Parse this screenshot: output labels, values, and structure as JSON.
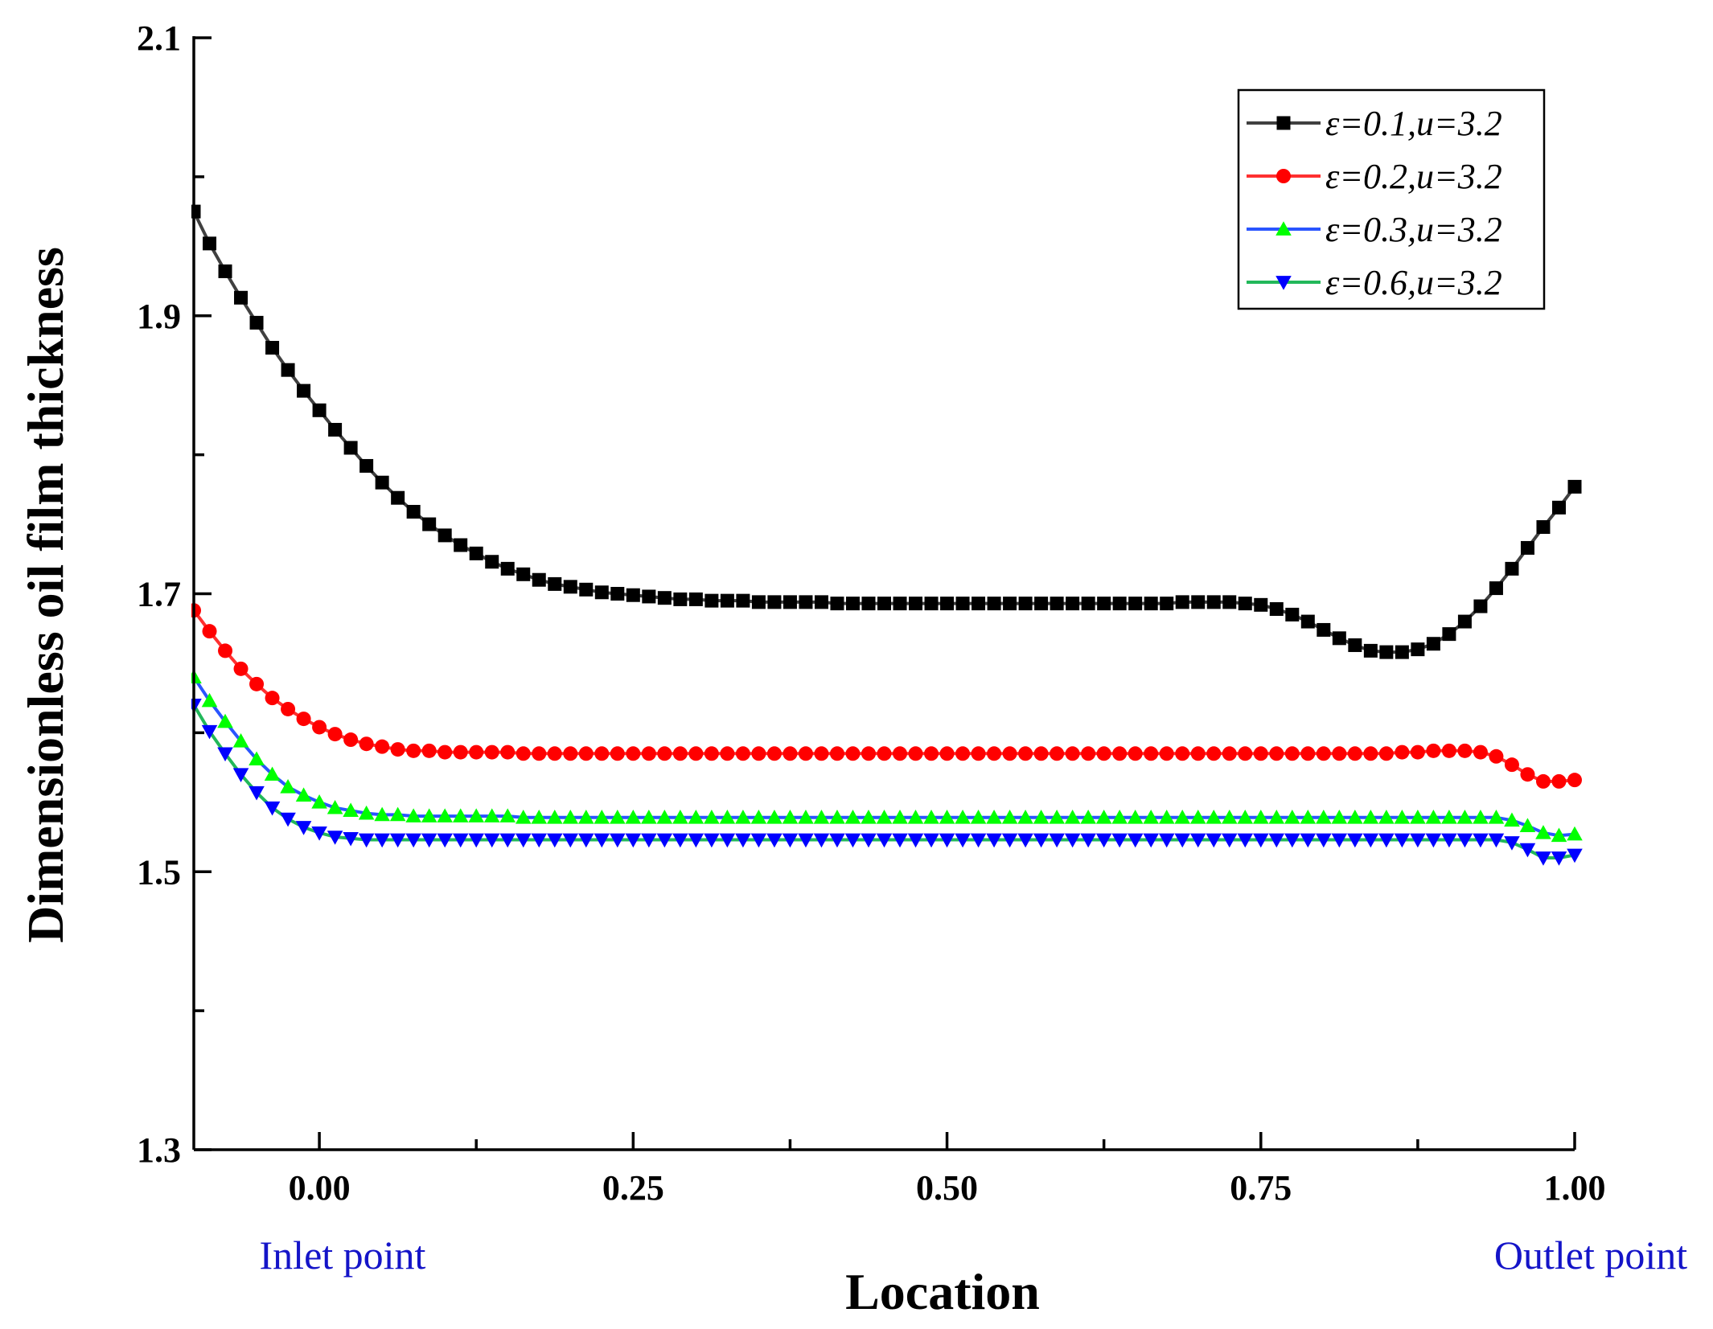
{
  "chart_data": {
    "type": "line",
    "title": "",
    "xlabel": "Location",
    "ylabel": "Dimensionless oil film thickness",
    "xlim": [
      -0.1,
      1.0
    ],
    "ylim": [
      1.3,
      2.1
    ],
    "xticks": [
      "0.00",
      "0.25",
      "0.50",
      "0.75",
      "1.00"
    ],
    "yticks": [
      "1.3",
      "1.5",
      "1.7",
      "1.9",
      "2.1"
    ],
    "annotations": {
      "inlet": "Inlet point",
      "outlet": "Outlet point",
      "color": "#1414c8"
    },
    "legend_position": "top-right",
    "series": [
      {
        "name": "ε=0.1,u=3.2",
        "line_color": "#404040",
        "marker_color": "#000000",
        "marker": "square",
        "x": [
          -0.1,
          -0.0875,
          -0.075,
          -0.0625,
          -0.05,
          -0.0375,
          -0.025,
          -0.0125,
          0.0,
          0.0125,
          0.025,
          0.0375,
          0.05,
          0.0625,
          0.075,
          0.0875,
          0.1,
          0.1125,
          0.125,
          0.1375,
          0.15,
          0.1625,
          0.175,
          0.1875,
          0.2,
          0.2125,
          0.225,
          0.2375,
          0.25,
          0.2625,
          0.275,
          0.2875,
          0.3,
          0.3125,
          0.325,
          0.3375,
          0.35,
          0.3625,
          0.375,
          0.3875,
          0.4,
          0.4125,
          0.425,
          0.4375,
          0.45,
          0.4625,
          0.475,
          0.4875,
          0.5,
          0.5125,
          0.525,
          0.5375,
          0.55,
          0.5625,
          0.575,
          0.5875,
          0.6,
          0.6125,
          0.625,
          0.6375,
          0.65,
          0.6625,
          0.675,
          0.6875,
          0.7,
          0.7125,
          0.725,
          0.7375,
          0.75,
          0.7625,
          0.775,
          0.7875,
          0.8,
          0.8125,
          0.825,
          0.8375,
          0.85,
          0.8625,
          0.875,
          0.8875,
          0.9,
          0.9125,
          0.925,
          0.9375,
          0.95,
          0.9625,
          0.975,
          0.9875,
          1.0
        ],
        "y": [
          1.975,
          1.952,
          1.932,
          1.913,
          1.895,
          1.877,
          1.861,
          1.846,
          1.832,
          1.818,
          1.805,
          1.792,
          1.78,
          1.769,
          1.759,
          1.75,
          1.742,
          1.735,
          1.729,
          1.723,
          1.718,
          1.714,
          1.71,
          1.707,
          1.705,
          1.703,
          1.701,
          1.7,
          1.699,
          1.698,
          1.697,
          1.696,
          1.696,
          1.695,
          1.695,
          1.695,
          1.694,
          1.694,
          1.694,
          1.694,
          1.694,
          1.693,
          1.693,
          1.693,
          1.693,
          1.693,
          1.693,
          1.693,
          1.693,
          1.693,
          1.693,
          1.693,
          1.693,
          1.693,
          1.693,
          1.693,
          1.693,
          1.693,
          1.693,
          1.693,
          1.693,
          1.693,
          1.693,
          1.694,
          1.694,
          1.694,
          1.694,
          1.693,
          1.692,
          1.689,
          1.685,
          1.68,
          1.674,
          1.668,
          1.663,
          1.659,
          1.658,
          1.658,
          1.66,
          1.664,
          1.671,
          1.68,
          1.691,
          1.704,
          1.718,
          1.733,
          1.748,
          1.762,
          1.777
        ]
      },
      {
        "name": "ε=0.2,u=3.2",
        "line_color": "#ff3030",
        "marker_color": "#ff0000",
        "marker": "circle",
        "x": [
          -0.1,
          -0.0875,
          -0.075,
          -0.0625,
          -0.05,
          -0.0375,
          -0.025,
          -0.0125,
          0.0,
          0.0125,
          0.025,
          0.0375,
          0.05,
          0.0625,
          0.075,
          0.0875,
          0.1,
          0.1125,
          0.125,
          0.1375,
          0.15,
          0.1625,
          0.175,
          0.1875,
          0.2,
          0.2125,
          0.225,
          0.2375,
          0.25,
          0.2625,
          0.275,
          0.2875,
          0.3,
          0.3125,
          0.325,
          0.3375,
          0.35,
          0.3625,
          0.375,
          0.3875,
          0.4,
          0.4125,
          0.425,
          0.4375,
          0.45,
          0.4625,
          0.475,
          0.4875,
          0.5,
          0.5125,
          0.525,
          0.5375,
          0.55,
          0.5625,
          0.575,
          0.5875,
          0.6,
          0.6125,
          0.625,
          0.6375,
          0.65,
          0.6625,
          0.675,
          0.6875,
          0.7,
          0.7125,
          0.725,
          0.7375,
          0.75,
          0.7625,
          0.775,
          0.7875,
          0.8,
          0.8125,
          0.825,
          0.8375,
          0.85,
          0.8625,
          0.875,
          0.8875,
          0.9,
          0.9125,
          0.925,
          0.9375,
          0.95,
          0.9625,
          0.975,
          0.9875,
          1.0
        ],
        "y": [
          1.688,
          1.673,
          1.659,
          1.646,
          1.635,
          1.625,
          1.617,
          1.61,
          1.604,
          1.599,
          1.595,
          1.592,
          1.59,
          1.588,
          1.587,
          1.587,
          1.586,
          1.586,
          1.586,
          1.586,
          1.586,
          1.585,
          1.585,
          1.585,
          1.585,
          1.585,
          1.585,
          1.585,
          1.585,
          1.585,
          1.585,
          1.585,
          1.585,
          1.585,
          1.585,
          1.585,
          1.585,
          1.585,
          1.585,
          1.585,
          1.585,
          1.585,
          1.585,
          1.585,
          1.585,
          1.585,
          1.585,
          1.585,
          1.585,
          1.585,
          1.585,
          1.585,
          1.585,
          1.585,
          1.585,
          1.585,
          1.585,
          1.585,
          1.585,
          1.585,
          1.585,
          1.585,
          1.585,
          1.585,
          1.585,
          1.585,
          1.585,
          1.585,
          1.585,
          1.585,
          1.585,
          1.585,
          1.585,
          1.585,
          1.585,
          1.585,
          1.585,
          1.586,
          1.586,
          1.587,
          1.587,
          1.587,
          1.586,
          1.583,
          1.577,
          1.57,
          1.565,
          1.565,
          1.566
        ]
      },
      {
        "name": "ε=0.3,u=3.2",
        "line_color": "#2a55ff",
        "marker_color": "#00ff00",
        "marker": "triangle-up",
        "x": [
          -0.1,
          -0.0875,
          -0.075,
          -0.0625,
          -0.05,
          -0.0375,
          -0.025,
          -0.0125,
          0.0,
          0.0125,
          0.025,
          0.0375,
          0.05,
          0.0625,
          0.075,
          0.0875,
          0.1,
          0.1125,
          0.125,
          0.1375,
          0.15,
          0.1625,
          0.175,
          0.1875,
          0.2,
          0.2125,
          0.225,
          0.2375,
          0.25,
          0.2625,
          0.275,
          0.2875,
          0.3,
          0.3125,
          0.325,
          0.3375,
          0.35,
          0.3625,
          0.375,
          0.3875,
          0.4,
          0.4125,
          0.425,
          0.4375,
          0.45,
          0.4625,
          0.475,
          0.4875,
          0.5,
          0.5125,
          0.525,
          0.5375,
          0.55,
          0.5625,
          0.575,
          0.5875,
          0.6,
          0.6125,
          0.625,
          0.6375,
          0.65,
          0.6625,
          0.675,
          0.6875,
          0.7,
          0.7125,
          0.725,
          0.7375,
          0.75,
          0.7625,
          0.775,
          0.7875,
          0.8,
          0.8125,
          0.825,
          0.8375,
          0.85,
          0.8625,
          0.875,
          0.8875,
          0.9,
          0.9125,
          0.925,
          0.9375,
          0.95,
          0.9625,
          0.975,
          0.9875,
          1.0
        ],
        "y": [
          1.64,
          1.623,
          1.608,
          1.594,
          1.581,
          1.57,
          1.561,
          1.555,
          1.55,
          1.546,
          1.544,
          1.542,
          1.541,
          1.541,
          1.54,
          1.54,
          1.54,
          1.54,
          1.54,
          1.54,
          1.54,
          1.539,
          1.539,
          1.539,
          1.539,
          1.539,
          1.539,
          1.539,
          1.539,
          1.539,
          1.539,
          1.539,
          1.539,
          1.539,
          1.539,
          1.539,
          1.539,
          1.539,
          1.539,
          1.539,
          1.539,
          1.539,
          1.539,
          1.539,
          1.539,
          1.539,
          1.539,
          1.539,
          1.539,
          1.539,
          1.539,
          1.539,
          1.539,
          1.539,
          1.539,
          1.539,
          1.539,
          1.539,
          1.539,
          1.539,
          1.539,
          1.539,
          1.539,
          1.539,
          1.539,
          1.539,
          1.539,
          1.539,
          1.539,
          1.539,
          1.539,
          1.539,
          1.539,
          1.539,
          1.539,
          1.539,
          1.539,
          1.539,
          1.539,
          1.539,
          1.539,
          1.539,
          1.539,
          1.539,
          1.537,
          1.533,
          1.528,
          1.526,
          1.527
        ]
      },
      {
        "name": "ε=0.6,u=3.2",
        "line_color": "#22b85a",
        "marker_color": "#0000ff",
        "marker": "triangle-down",
        "x": [
          -0.1,
          -0.0875,
          -0.075,
          -0.0625,
          -0.05,
          -0.0375,
          -0.025,
          -0.0125,
          0.0,
          0.0125,
          0.025,
          0.0375,
          0.05,
          0.0625,
          0.075,
          0.0875,
          0.1,
          0.1125,
          0.125,
          0.1375,
          0.15,
          0.1625,
          0.175,
          0.1875,
          0.2,
          0.2125,
          0.225,
          0.2375,
          0.25,
          0.2625,
          0.275,
          0.2875,
          0.3,
          0.3125,
          0.325,
          0.3375,
          0.35,
          0.3625,
          0.375,
          0.3875,
          0.4,
          0.4125,
          0.425,
          0.4375,
          0.45,
          0.4625,
          0.475,
          0.4875,
          0.5,
          0.5125,
          0.525,
          0.5375,
          0.55,
          0.5625,
          0.575,
          0.5875,
          0.6,
          0.6125,
          0.625,
          0.6375,
          0.65,
          0.6625,
          0.675,
          0.6875,
          0.7,
          0.7125,
          0.725,
          0.7375,
          0.75,
          0.7625,
          0.775,
          0.7875,
          0.8,
          0.8125,
          0.825,
          0.8375,
          0.85,
          0.8625,
          0.875,
          0.8875,
          0.9,
          0.9125,
          0.925,
          0.9375,
          0.95,
          0.9625,
          0.975,
          0.9875,
          1.0
        ],
        "y": [
          1.62,
          1.601,
          1.585,
          1.57,
          1.557,
          1.546,
          1.538,
          1.532,
          1.528,
          1.525,
          1.524,
          1.523,
          1.523,
          1.523,
          1.523,
          1.523,
          1.523,
          1.523,
          1.523,
          1.523,
          1.523,
          1.523,
          1.523,
          1.523,
          1.523,
          1.523,
          1.523,
          1.523,
          1.523,
          1.523,
          1.523,
          1.523,
          1.523,
          1.523,
          1.523,
          1.523,
          1.523,
          1.523,
          1.523,
          1.523,
          1.523,
          1.523,
          1.523,
          1.523,
          1.523,
          1.523,
          1.523,
          1.523,
          1.523,
          1.523,
          1.523,
          1.523,
          1.523,
          1.523,
          1.523,
          1.523,
          1.523,
          1.523,
          1.523,
          1.523,
          1.523,
          1.523,
          1.523,
          1.523,
          1.523,
          1.523,
          1.523,
          1.523,
          1.523,
          1.523,
          1.523,
          1.523,
          1.523,
          1.523,
          1.523,
          1.523,
          1.523,
          1.523,
          1.523,
          1.523,
          1.523,
          1.523,
          1.523,
          1.523,
          1.521,
          1.516,
          1.51,
          1.51,
          1.512
        ]
      }
    ]
  }
}
